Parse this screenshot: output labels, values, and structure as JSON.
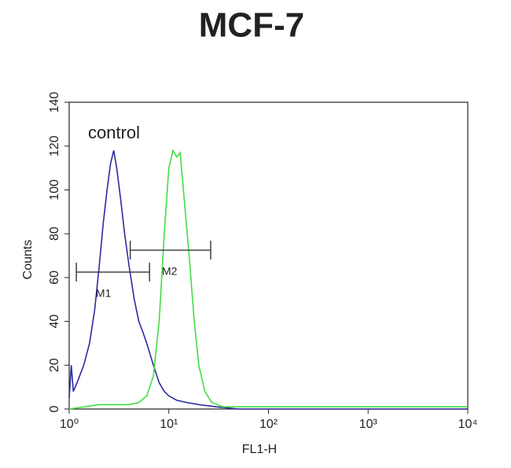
{
  "chart_data": {
    "type": "line",
    "title": "MCF-7",
    "x_label": "FL1-H",
    "y_label": "Counts",
    "xlog": true,
    "xlim": [
      1,
      10000
    ],
    "xticks": [
      {
        "value": 1,
        "label": "10⁰"
      },
      {
        "value": 10,
        "label": "10¹"
      },
      {
        "value": 100,
        "label": "10²"
      },
      {
        "value": 1000,
        "label": "10³"
      },
      {
        "value": 10000,
        "label": "10⁴"
      }
    ],
    "ylim": [
      0,
      140
    ],
    "yticks": [
      0,
      20,
      40,
      60,
      80,
      100,
      120,
      140
    ],
    "annotation": "control",
    "series": [
      {
        "color": "#2b2ba0",
        "x": [
          1.0,
          1.05,
          1.1,
          1.2,
          1.4,
          1.6,
          1.8,
          2.0,
          2.2,
          2.4,
          2.6,
          2.8,
          3.0,
          3.3,
          3.6,
          4.0,
          4.5,
          5.0,
          5.5,
          6.0,
          7.0,
          8.0,
          9.0,
          10,
          12,
          15,
          20,
          30,
          50,
          10000
        ],
        "values": [
          5,
          20,
          8,
          12,
          20,
          30,
          45,
          65,
          85,
          100,
          112,
          118,
          110,
          95,
          80,
          65,
          50,
          40,
          35,
          30,
          20,
          12,
          8,
          6,
          4,
          3,
          2,
          1,
          0,
          0
        ]
      },
      {
        "color": "#44dd44",
        "x": [
          1,
          2,
          4,
          5,
          6,
          7,
          8,
          9,
          10,
          11,
          12,
          13,
          14,
          16,
          18,
          20,
          23,
          27,
          35,
          100,
          1000,
          10000
        ],
        "values": [
          0,
          2,
          2,
          3,
          6,
          15,
          40,
          80,
          110,
          118,
          115,
          117,
          100,
          70,
          40,
          20,
          8,
          3,
          1,
          1,
          1,
          1
        ]
      }
    ],
    "gates": [
      {
        "label": "M1",
        "x": [
          1.18,
          6.4
        ],
        "y": 62.5
      },
      {
        "label": "M2",
        "x": [
          4.1,
          26.3
        ],
        "y": 72.5
      }
    ]
  }
}
